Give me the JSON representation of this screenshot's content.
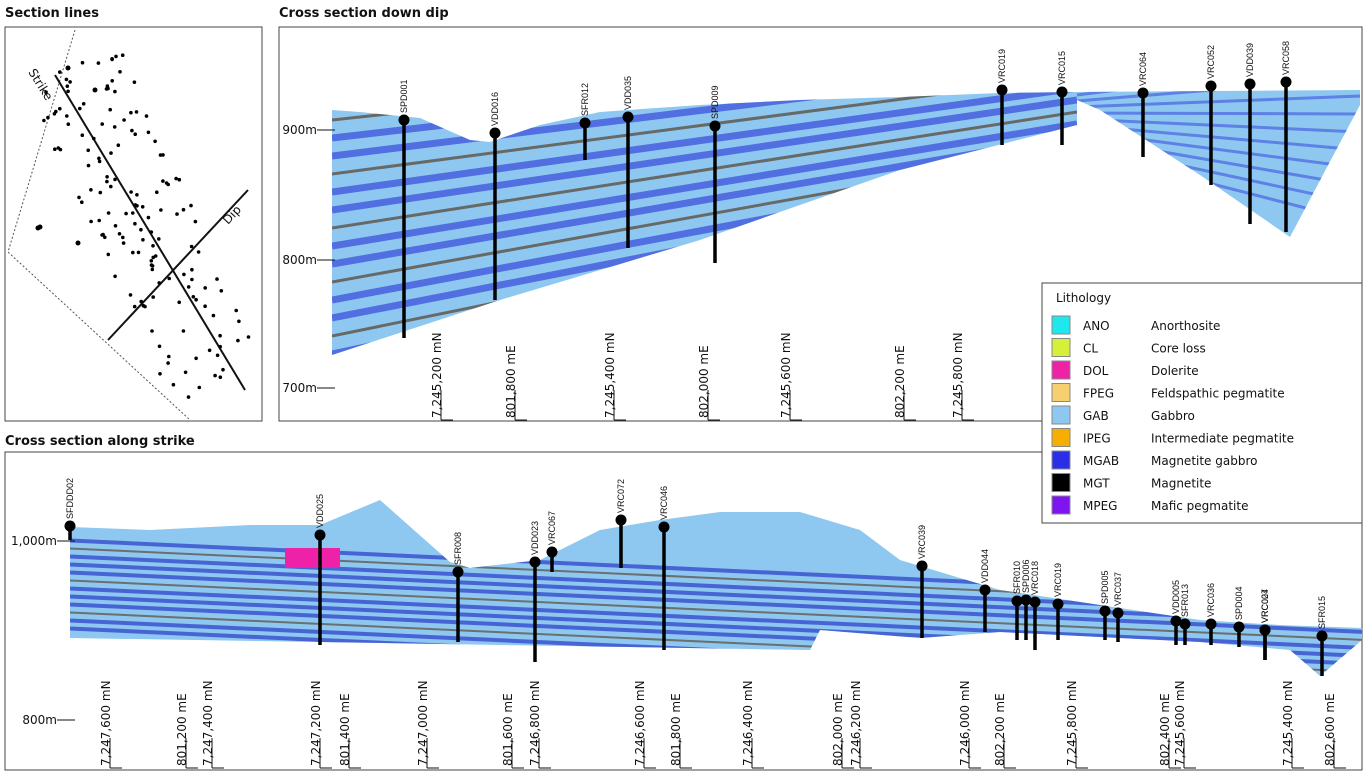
{
  "section_lines": {
    "title": "Section lines",
    "strike": "Strike",
    "dip": "Dip"
  },
  "down_dip": {
    "title": "Cross section down dip",
    "elevations": [
      "900m",
      "800m",
      "700m"
    ],
    "holes": [
      "SPD001",
      "VDD016",
      "SFR012",
      "VDD035",
      "SPD009",
      "VRC019",
      "VRC015",
      "VRC064",
      "VRC052",
      "VDD039",
      "VRC058"
    ],
    "grid_labels": [
      "7,245,200 mN",
      "801,800 mE",
      "7,245,400 mN",
      "802,000 mE",
      "7,245,600 mN",
      "802,200 mE",
      "7,245,800 mN"
    ]
  },
  "along_strike": {
    "title": "Cross section along strike",
    "elevations": [
      "1,000m",
      "800m"
    ],
    "holes": [
      "SFDDD02",
      "VDD025",
      "SFR008",
      "VDD023",
      "VRC067",
      "VRC072",
      "VRC046",
      "VRC039",
      "VDD044",
      "SFR010",
      "SPD006",
      "VRC018",
      "VRC019",
      "SPD005",
      "VRC037",
      "VDD005",
      "SFR013",
      "VRC036",
      "SPD004",
      "VRC024",
      "VRC007",
      "SFR015"
    ],
    "grid_labels": [
      "7,247,600 mN",
      "801,200 mE",
      "7,247,400 mN",
      "7,247,200 mN",
      "801,400 mE",
      "7,247,000 mN",
      "801,600 mE",
      "7,246,800 mN",
      "7,246,600 mN",
      "801,800 mE",
      "7,246,400 mN",
      "802,000 mE",
      "7,246,200 mN",
      "7,246,000 mN",
      "802,200 mE",
      "7,245,800 mN",
      "802,400 mE",
      "7,245,600 mN",
      "7,245,400 mN",
      "802,600 mE"
    ]
  },
  "legend": {
    "title": "Lithology",
    "items": [
      {
        "code": "ANO",
        "name": "Anorthosite",
        "color": "#1ee8ee"
      },
      {
        "code": "CL",
        "name": "Core loss",
        "color": "#d6f03a"
      },
      {
        "code": "DOL",
        "name": "Dolerite",
        "color": "#ee22a6"
      },
      {
        "code": "FPEG",
        "name": "Feldspathic pegmatite",
        "color": "#f6cf6e"
      },
      {
        "code": "GAB",
        "name": "Gabbro",
        "color": "#8ec8f0"
      },
      {
        "code": "IPEG",
        "name": "Intermediate pegmatite",
        "color": "#f6ae00"
      },
      {
        "code": "MGAB",
        "name": "Magnetite gabbro",
        "color": "#2a2ee6"
      },
      {
        "code": "MGT",
        "name": "Magnetite",
        "color": "#000000"
      },
      {
        "code": "MPEG",
        "name": "Mafic pegmatite",
        "color": "#7f14f2"
      }
    ]
  }
}
